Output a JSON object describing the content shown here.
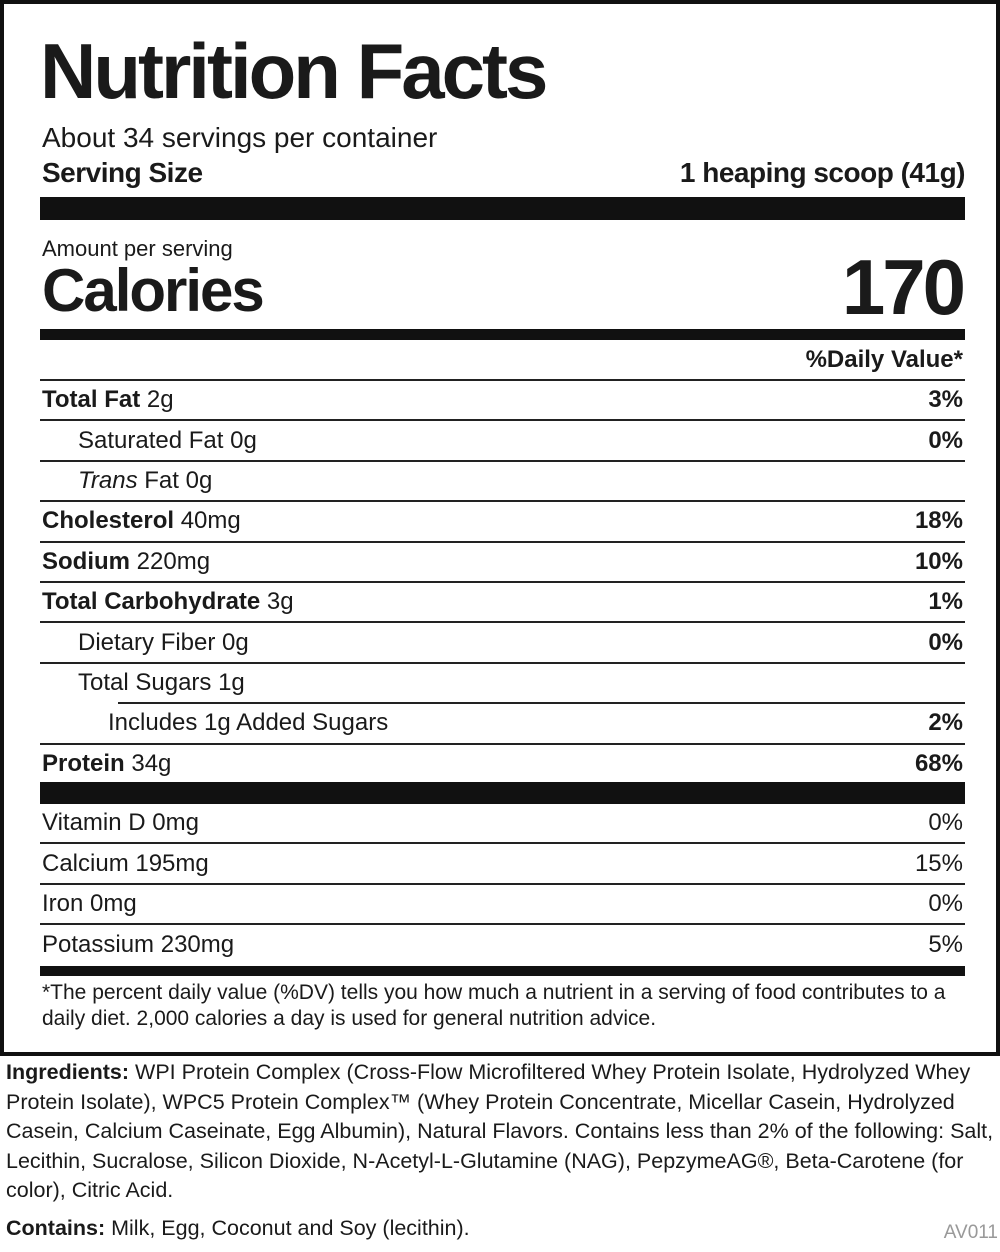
{
  "title": "Nutrition Facts",
  "servings_per_container": "About 34 servings per container",
  "serving_size": {
    "label": "Serving Size",
    "value": "1 heaping scoop (41g)"
  },
  "amount_per_serving": "Amount per serving",
  "calories": {
    "label": "Calories",
    "value": "170"
  },
  "dv_header": "%Daily Value*",
  "nutrients": [
    {
      "name": "Total Fat",
      "amount": "2g",
      "dv": "3%"
    },
    {
      "name": "Saturated Fat",
      "amount": "0g",
      "dv": "0%"
    },
    {
      "name": "Trans",
      "name2": "Fat",
      "amount": "0g",
      "dv": ""
    },
    {
      "name": "Cholesterol",
      "amount": "40mg",
      "dv": "18%"
    },
    {
      "name": "Sodium",
      "amount": "220mg",
      "dv": "10%"
    },
    {
      "name": "Total Carbohydrate",
      "amount": "3g",
      "dv": "1%"
    },
    {
      "name": "Dietary Fiber",
      "amount": "0g",
      "dv": "0%"
    },
    {
      "name": "Total Sugars",
      "amount": "1g",
      "dv": ""
    },
    {
      "name": "Includes 1g Added Sugars",
      "amount": "",
      "dv": "2%"
    },
    {
      "name": "Protein",
      "amount": "34g",
      "dv": "68%"
    }
  ],
  "vitamins": [
    {
      "name": "Vitamin D",
      "amount": "0mg",
      "dv": "0%"
    },
    {
      "name": "Calcium",
      "amount": "195mg",
      "dv": "15%"
    },
    {
      "name": "Iron",
      "amount": "0mg",
      "dv": "0%"
    },
    {
      "name": "Potassium",
      "amount": "230mg",
      "dv": "5%"
    }
  ],
  "footnote": "*The percent daily value (%DV) tells you how much a nutrient in a serving of food contributes to a daily diet. 2,000 calories a day is used for general nutrition advice.",
  "ingredients": {
    "label": "Ingredients:",
    "text": "WPI Protein Complex (Cross-Flow Microfiltered Whey Protein Isolate, Hydrolyzed Whey Protein Isolate), WPC5 Protein Complex™ (Whey Protein Concentrate, Micellar Casein, Hydrolyzed Casein, Calcium Caseinate, Egg Albumin), Natural Flavors. Contains less than 2% of the following: Salt, Lecithin,  Sucralose, Silicon Dioxide, N-Acetyl-L-Glutamine (NAG), PepzymeAG®, Beta-Carotene (for color), Citric Acid."
  },
  "contains": {
    "label": "Contains:",
    "text": "Milk, Egg, Coconut and Soy (lecithin)."
  },
  "code": "AV011"
}
